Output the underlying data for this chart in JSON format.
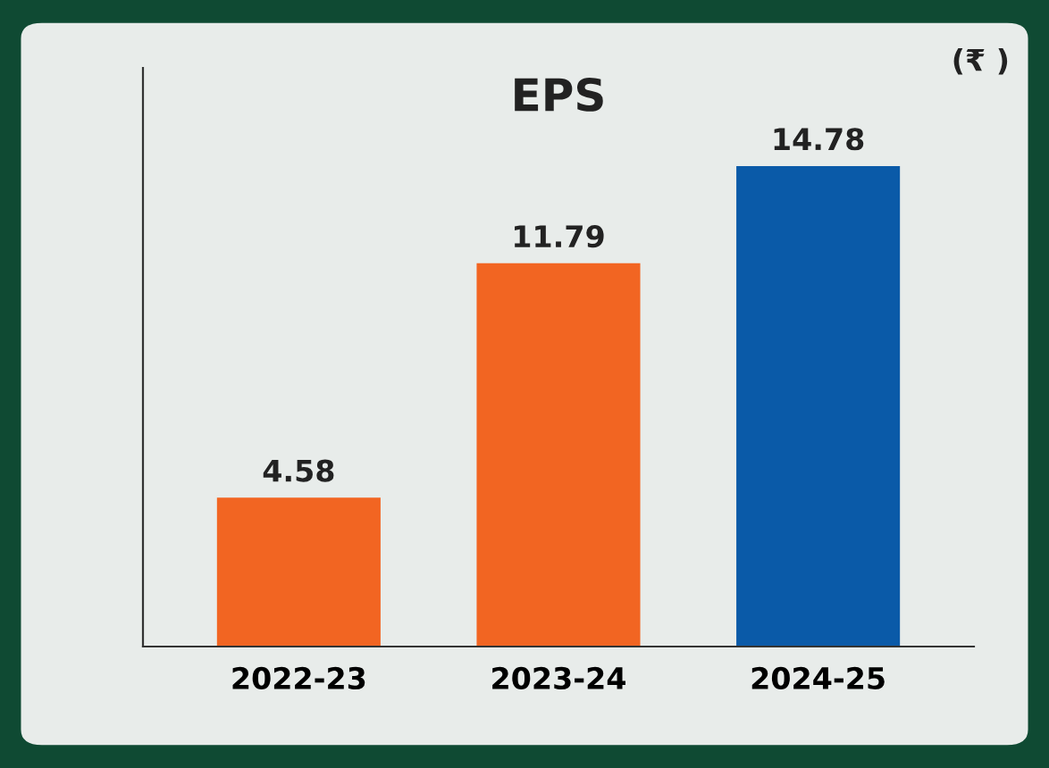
{
  "chart_data": {
    "type": "bar",
    "title": "EPS",
    "categories": [
      "2022-23",
      "2023-24",
      "2024-25"
    ],
    "values": [
      4.58,
      11.79,
      14.78
    ],
    "colors": [
      "#f26522",
      "#f26522",
      "#0a5aa8"
    ],
    "data_labels": true,
    "ylim": [
      0,
      17.8
    ],
    "grid": false,
    "legend": false,
    "annotations": [
      "(₹ )"
    ]
  }
}
